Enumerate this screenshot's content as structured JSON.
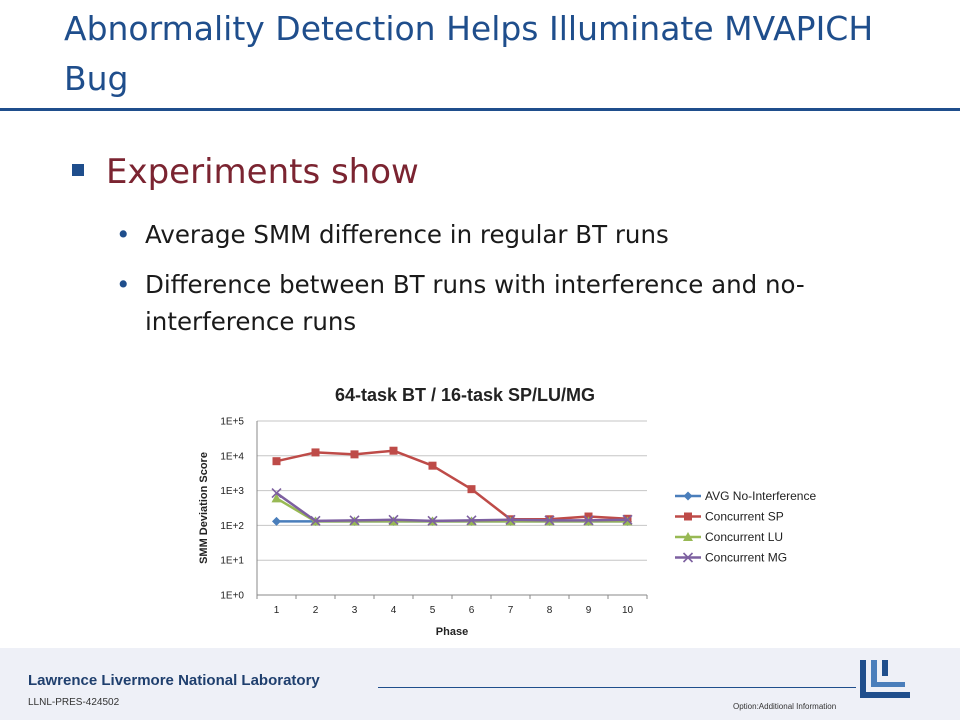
{
  "slide": {
    "title": "Abnormality Detection Helps Illuminate MVAPICH Bug",
    "main_bullet": "Experiments show",
    "sub_bullets": [
      "Average SMM difference in regular BT runs",
      "Difference between BT runs with interference and no-interference runs"
    ]
  },
  "footer": {
    "lab_name": "Lawrence Livermore National Laboratory",
    "doc_id": "LLNL-PRES-424502",
    "option_text": "Option:Additional Information"
  },
  "chart_data": {
    "type": "line",
    "title": "64-task BT / 16-task SP/LU/MG",
    "xlabel": "Phase",
    "ylabel": "SMM Deviation Score",
    "y_scale": "log",
    "ylim": [
      1,
      100000
    ],
    "y_ticks": [
      1,
      10,
      100,
      1000,
      10000,
      100000
    ],
    "y_tick_labels": [
      "1E+0",
      "1E+1",
      "1E+2",
      "1E+3",
      "1E+4",
      "1E+5"
    ],
    "categories": [
      "1",
      "2",
      "3",
      "4",
      "5",
      "6",
      "7",
      "8",
      "9",
      "10"
    ],
    "grid": true,
    "legend_position": "right",
    "series": [
      {
        "name": "AVG No-Interference",
        "color": "#4a7ebb",
        "marker": "diamond",
        "values": [
          130,
          130,
          130,
          130,
          130,
          130,
          130,
          130,
          130,
          130
        ]
      },
      {
        "name": "Concurrent SP",
        "color": "#be4b48",
        "marker": "square",
        "values": [
          7000,
          12500,
          11000,
          14000,
          5200,
          1100,
          150,
          150,
          180,
          155
        ]
      },
      {
        "name": "Concurrent LU",
        "color": "#98b954",
        "marker": "triangle",
        "values": [
          600,
          130,
          130,
          130,
          130,
          130,
          130,
          130,
          130,
          130
        ]
      },
      {
        "name": "Concurrent MG",
        "color": "#7d60a0",
        "marker": "x",
        "values": [
          850,
          135,
          140,
          145,
          135,
          140,
          145,
          140,
          140,
          145
        ]
      }
    ]
  }
}
